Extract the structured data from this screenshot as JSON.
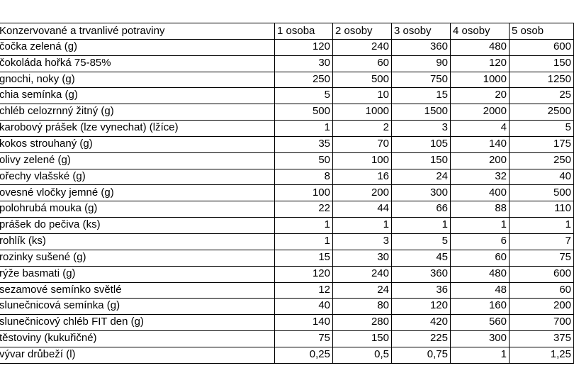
{
  "table": {
    "header": [
      "Konzervované a trvanlivé potraviny",
      "1 osoba",
      "2 osoby",
      "3 osoby",
      "4 osoby",
      "5 osob"
    ],
    "rows": [
      [
        "čočka zelená (g)",
        "120",
        "240",
        "360",
        "480",
        "600"
      ],
      [
        "čokoláda hořká 75-85%",
        "30",
        "60",
        "90",
        "120",
        "150"
      ],
      [
        "gnochi, noky (g)",
        "250",
        "500",
        "750",
        "1000",
        "1250"
      ],
      [
        "chia semínka (g)",
        "5",
        "10",
        "15",
        "20",
        "25"
      ],
      [
        "chléb celozrnný žitný (g)",
        "500",
        "1000",
        "1500",
        "2000",
        "2500"
      ],
      [
        "karobový prášek (lze vynechat) (lžíce)",
        "1",
        "2",
        "3",
        "4",
        "5"
      ],
      [
        "kokos strouhaný (g)",
        "35",
        "70",
        "105",
        "140",
        "175"
      ],
      [
        "olivy zelené (g)",
        "50",
        "100",
        "150",
        "200",
        "250"
      ],
      [
        "ořechy vlašské (g)",
        "8",
        "16",
        "24",
        "32",
        "40"
      ],
      [
        "ovesné vločky jemné (g)",
        "100",
        "200",
        "300",
        "400",
        "500"
      ],
      [
        "polohrubá mouka (g)",
        "22",
        "44",
        "66",
        "88",
        "110"
      ],
      [
        "prášek do pečiva (ks)",
        "1",
        "1",
        "1",
        "1",
        "1"
      ],
      [
        "rohlík (ks)",
        "1",
        "3",
        "5",
        "6",
        "7"
      ],
      [
        "rozinky sušené (g)",
        "15",
        "30",
        "45",
        "60",
        "75"
      ],
      [
        "rýže basmati (g)",
        "120",
        "240",
        "360",
        "480",
        "600"
      ],
      [
        "sezamové semínko světlé",
        "12",
        "24",
        "36",
        "48",
        "60"
      ],
      [
        "slunečnicová semínka (g)",
        "40",
        "80",
        "120",
        "160",
        "200"
      ],
      [
        "slunečnicový chléb FIT den (g)",
        "140",
        "280",
        "420",
        "560",
        "700"
      ],
      [
        "těstoviny (kukuřičné)",
        "75",
        "150",
        "225",
        "300",
        "375"
      ],
      [
        "vývar drůbeží (l)",
        "0,25",
        "0,5",
        "0,75",
        "1",
        "1,25"
      ]
    ]
  }
}
